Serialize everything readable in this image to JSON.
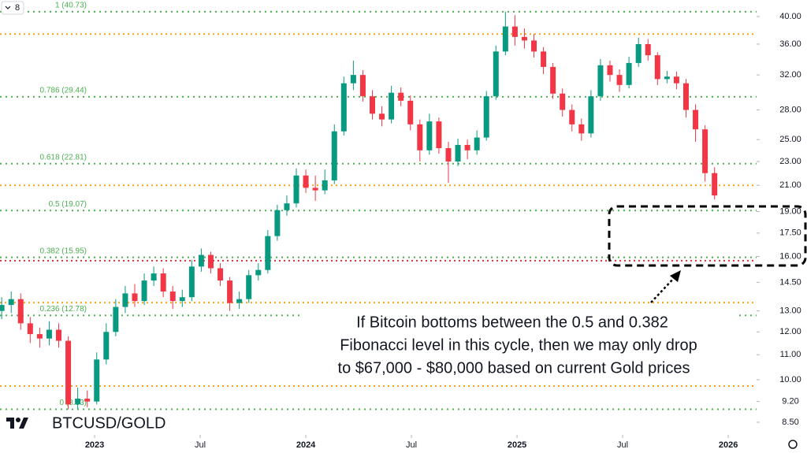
{
  "chart_data": {
    "type": "candlestick",
    "symbol": "BTCUSD/GOLD",
    "interval_label": "8",
    "log_scale": true,
    "up_color": "#089981",
    "down_color": "#f23645",
    "xlim": [
      2022.552,
      2026.134
    ],
    "xticks": [
      {
        "value": 2023,
        "label": "2023"
      },
      {
        "value": 2023.5,
        "label": "Jul"
      },
      {
        "value": 2024,
        "label": "2024"
      },
      {
        "value": 2024.5,
        "label": "Jul"
      },
      {
        "value": 2025,
        "label": "2025"
      },
      {
        "value": 2025.5,
        "label": "Jul"
      },
      {
        "value": 2026,
        "label": "2026"
      }
    ],
    "ylim": [
      8.1,
      42.6
    ],
    "yticks": [
      {
        "value": 40,
        "label": "40.00"
      },
      {
        "value": 36,
        "label": "36.00"
      },
      {
        "value": 32,
        "label": "32.00"
      },
      {
        "value": 28,
        "label": "28.00"
      },
      {
        "value": 25,
        "label": "25.00"
      },
      {
        "value": 23,
        "label": "23.00"
      },
      {
        "value": 21,
        "label": "21.00"
      },
      {
        "value": 19,
        "label": "19.00"
      },
      {
        "value": 17.5,
        "label": "17.50"
      },
      {
        "value": 16,
        "label": "16.00"
      },
      {
        "value": 14.5,
        "label": "14.50"
      },
      {
        "value": 13,
        "label": "13.00"
      },
      {
        "value": 12,
        "label": "12.00"
      },
      {
        "value": 11,
        "label": "11.00"
      },
      {
        "value": 10,
        "label": "10.00"
      },
      {
        "value": 9.2,
        "label": "9.20"
      },
      {
        "value": 8.5,
        "label": "8.50"
      }
    ],
    "fib_color": "#4caf50",
    "fib_levels": [
      {
        "label": "1 (40.73)",
        "value": 40.73
      },
      {
        "label": "0.786 (29.44)",
        "value": 29.44
      },
      {
        "label": "0.618 (22.81)",
        "value": 22.81
      },
      {
        "label": "0.5 (19.07)",
        "value": 19.07
      },
      {
        "label": "0.382 (15.95)",
        "value": 15.95
      },
      {
        "label": "0.236 (12.78)",
        "value": 12.78
      },
      {
        "label": "0 (8.93)",
        "value": 8.93
      }
    ],
    "hlines": [
      {
        "value": 37.4,
        "color": "#f7a21b"
      },
      {
        "value": 21.0,
        "color": "#f7a21b"
      },
      {
        "value": 13.42,
        "color": "#f7a21b"
      },
      {
        "value": 9.76,
        "color": "#f7a21b"
      },
      {
        "value": 15.75,
        "color": "#e0303a"
      }
    ],
    "annotation": [
      "If Bitcoin bottoms between the 0.5 and 0.382",
      "Fibonacci level in this cycle, then we may only drop",
      "to $67,000 - $80,000 based on current Gold prices"
    ],
    "x": [
      2022.56,
      2022.605,
      2022.65,
      2022.695,
      2022.74,
      2022.785,
      2022.83,
      2022.875,
      2022.92,
      2022.965,
      2023.01,
      2023.055,
      2023.1,
      2023.145,
      2023.19,
      2023.235,
      2023.28,
      2023.325,
      2023.37,
      2023.415,
      2023.46,
      2023.505,
      2023.55,
      2023.595,
      2023.64,
      2023.685,
      2023.73,
      2023.775,
      2023.82,
      2023.865,
      2023.91,
      2023.955,
      2024.0,
      2024.045,
      2024.09,
      2024.135,
      2024.18,
      2024.225,
      2024.27,
      2024.315,
      2024.36,
      2024.405,
      2024.45,
      2024.495,
      2024.54,
      2024.585,
      2024.63,
      2024.675,
      2024.72,
      2024.765,
      2024.81,
      2024.855,
      2024.9,
      2024.945,
      2024.99,
      2025.035,
      2025.08,
      2025.125,
      2025.17,
      2025.215,
      2025.26,
      2025.305,
      2025.35,
      2025.395,
      2025.44,
      2025.485,
      2025.53,
      2025.575,
      2025.62,
      2025.665,
      2025.71,
      2025.755,
      2025.8,
      2025.845,
      2025.89,
      2025.935
    ],
    "open": [
      13.0,
      13.3,
      13.6,
      12.4,
      11.9,
      11.7,
      12.1,
      11.6,
      9.1,
      9.3,
      9.2,
      10.8,
      12.0,
      13.2,
      13.9,
      13.5,
      14.6,
      15.0,
      14.0,
      13.5,
      13.7,
      15.4,
      16.1,
      15.3,
      14.6,
      13.4,
      13.6,
      14.9,
      15.2,
      17.3,
      19.1,
      19.6,
      21.8,
      20.8,
      20.6,
      21.4,
      25.8,
      31.0,
      32.0,
      29.5,
      27.6,
      27.0,
      29.9,
      29.0,
      26.5,
      24.0,
      26.8,
      24.2,
      23.0,
      24.5,
      24.0,
      25.2,
      29.5,
      35.0,
      38.5,
      37.0,
      36.5,
      35.0,
      33.0,
      29.8,
      28.0,
      26.5,
      25.6,
      29.5,
      33.2,
      32.0,
      30.8,
      33.5,
      36.0,
      34.5,
      31.5,
      31.8,
      31.0,
      28.0,
      26.0,
      22.0
    ],
    "high": [
      13.7,
      14.0,
      13.9,
      12.7,
      12.2,
      12.5,
      12.4,
      11.8,
      9.7,
      9.6,
      11.1,
      12.4,
      13.6,
      14.3,
      14.4,
      15.0,
      15.4,
      15.3,
      14.3,
      14.1,
      15.8,
      16.5,
      16.3,
      15.6,
      14.8,
      14.0,
      15.2,
      15.6,
      17.7,
      19.5,
      20.2,
      22.4,
      22.3,
      21.8,
      22.3,
      26.5,
      31.8,
      33.8,
      32.6,
      30.2,
      28.4,
      30.7,
      30.5,
      29.6,
      27.0,
      27.6,
      27.2,
      24.8,
      25.1,
      25.0,
      25.9,
      30.1,
      35.8,
      40.73,
      40.2,
      38.2,
      37.4,
      35.6,
      33.5,
      30.4,
      28.6,
      27.1,
      30.2,
      34.0,
      33.8,
      32.7,
      34.3,
      36.9,
      36.7,
      34.9,
      32.5,
      32.4,
      31.5,
      28.6,
      26.4,
      22.5
    ],
    "low": [
      12.6,
      12.9,
      12.1,
      11.5,
      11.3,
      11.4,
      11.3,
      8.93,
      8.95,
      9.0,
      9.1,
      10.6,
      11.8,
      12.9,
      13.2,
      13.3,
      14.3,
      13.7,
      13.1,
      13.2,
      13.5,
      15.1,
      15.0,
      14.3,
      13.0,
      13.1,
      13.4,
      14.6,
      15.0,
      17.0,
      18.7,
      19.3,
      20.4,
      19.8,
      20.3,
      21.1,
      25.4,
      30.2,
      28.9,
      27.0,
      26.3,
      26.6,
      28.4,
      25.9,
      23.0,
      23.6,
      23.7,
      21.2,
      22.6,
      23.2,
      23.6,
      24.9,
      29.1,
      34.5,
      35.8,
      35.4,
      34.2,
      32.1,
      29.2,
      27.3,
      25.8,
      24.9,
      25.2,
      29.0,
      31.2,
      30.0,
      30.4,
      33.0,
      33.8,
      30.8,
      31.0,
      30.3,
      27.2,
      24.8,
      21.3,
      19.9
    ],
    "close": [
      13.3,
      13.6,
      12.4,
      11.9,
      11.7,
      12.1,
      11.6,
      9.1,
      9.3,
      9.2,
      10.8,
      12.0,
      13.2,
      13.9,
      13.5,
      14.6,
      15.0,
      14.0,
      13.5,
      13.7,
      15.4,
      16.1,
      15.3,
      14.6,
      13.4,
      13.6,
      14.9,
      15.2,
      17.3,
      19.1,
      19.6,
      21.8,
      20.8,
      20.6,
      21.4,
      25.8,
      31.0,
      32.0,
      29.5,
      27.6,
      27.0,
      29.9,
      29.0,
      26.5,
      24.0,
      26.8,
      24.2,
      23.0,
      24.5,
      24.0,
      25.2,
      29.5,
      35.0,
      38.5,
      37.0,
      36.5,
      35.0,
      33.0,
      29.8,
      28.0,
      26.5,
      25.6,
      29.5,
      33.2,
      32.0,
      30.8,
      33.5,
      36.0,
      34.5,
      31.5,
      31.8,
      31.0,
      28.0,
      26.0,
      22.0,
      20.2
    ]
  }
}
